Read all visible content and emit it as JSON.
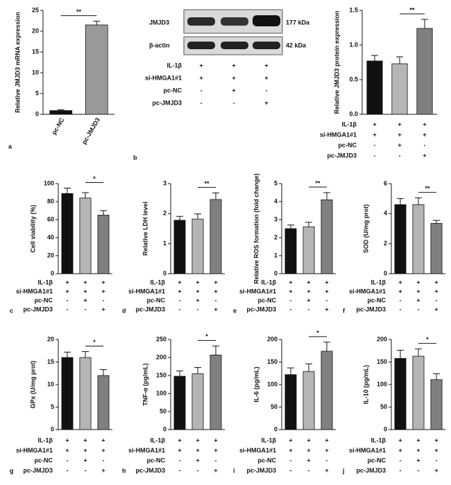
{
  "chart_data": [
    {
      "type": "bar",
      "panel": "a",
      "ylabel": "Relative JMJD3 mRNA expression",
      "categories": [
        "pc-NC",
        "pc-JMJD3"
      ],
      "values": [
        0.9,
        21.5
      ],
      "errors": [
        0.2,
        0.9
      ],
      "colors": [
        "#111111",
        "#9a9a9a"
      ],
      "ylim": [
        0,
        25
      ],
      "yticks": [
        0,
        5,
        10,
        15,
        20,
        25
      ],
      "significance": "**"
    },
    {
      "type": "bar",
      "panel": "b",
      "ylabel": "Relative JMJD3 protein expression",
      "values": [
        0.77,
        0.73,
        1.24
      ],
      "errors": [
        0.08,
        0.1,
        0.13
      ],
      "colors": [
        "#111111",
        "#b5b5b5",
        "#808080"
      ],
      "ylim": [
        0,
        1.5
      ],
      "yticks": [
        {
          "value": 0,
          "label": "0.0"
        },
        0.5,
        {
          "value": 1,
          "label": "1.0"
        },
        1.5
      ],
      "significance": "**",
      "conditions": [
        {
          "label": "IL-1β",
          "signs": [
            "+",
            "+",
            "+"
          ]
        },
        {
          "label": "si-HMGA1#1",
          "signs": [
            "+",
            "+",
            "+"
          ]
        },
        {
          "label": "pc-NC",
          "signs": [
            "-",
            "+",
            "-"
          ]
        },
        {
          "label": "pc-JMJD3",
          "signs": [
            "-",
            "-",
            "+"
          ]
        }
      ]
    },
    {
      "type": "bar",
      "panel": "c",
      "ylabel": "Cell viability (%)",
      "values": [
        89,
        84,
        65
      ],
      "errors": [
        6,
        6,
        5
      ],
      "colors": [
        "#111111",
        "#b5b5b5",
        "#808080"
      ],
      "ylim": [
        0,
        100
      ],
      "yticks": [
        0,
        20,
        40,
        60,
        80,
        100
      ],
      "significance": "*",
      "conditions": [
        {
          "label": "IL-1β",
          "signs": [
            "+",
            "+",
            "+"
          ]
        },
        {
          "label": "si-HMGA1#1",
          "signs": [
            "+",
            "+",
            "+"
          ]
        },
        {
          "label": "pc-NC",
          "signs": [
            "-",
            "+",
            "-"
          ]
        },
        {
          "label": "pc-JMJD3",
          "signs": [
            "-",
            "-",
            "+"
          ]
        }
      ]
    },
    {
      "type": "bar",
      "panel": "d",
      "ylabel": "Relative LDH level",
      "values": [
        1.78,
        1.82,
        2.47
      ],
      "errors": [
        0.13,
        0.17,
        0.22
      ],
      "colors": [
        "#111111",
        "#b5b5b5",
        "#808080"
      ],
      "ylim": [
        0,
        3
      ],
      "yticks": [
        0,
        1,
        2,
        3
      ],
      "significance": "**",
      "conditions": [
        {
          "label": "IL-1β",
          "signs": [
            "+",
            "+",
            "+"
          ]
        },
        {
          "label": "si-HMGA1#1",
          "signs": [
            "+",
            "+",
            "+"
          ]
        },
        {
          "label": "pc-NC",
          "signs": [
            "-",
            "+",
            "-"
          ]
        },
        {
          "label": "pc-JMJD3",
          "signs": [
            "-",
            "-",
            "+"
          ]
        }
      ]
    },
    {
      "type": "bar",
      "panel": "e",
      "ylabel": "Relative ROS formation (fold change)",
      "values": [
        2.5,
        2.6,
        4.1
      ],
      "errors": [
        0.2,
        0.25,
        0.4
      ],
      "colors": [
        "#111111",
        "#b5b5b5",
        "#808080"
      ],
      "ylim": [
        0,
        5
      ],
      "yticks": [
        0,
        1,
        2,
        3,
        4,
        5
      ],
      "significance": "**",
      "conditions": [
        {
          "label": "IL-1β",
          "signs": [
            "+",
            "+",
            "+"
          ]
        },
        {
          "label": "si-HMGA1#1",
          "signs": [
            "+",
            "+",
            "+"
          ]
        },
        {
          "label": "pc-NC",
          "signs": [
            "-",
            "+",
            "-"
          ]
        },
        {
          "label": "pc-JMJD3",
          "signs": [
            "-",
            "-",
            "+"
          ]
        }
      ]
    },
    {
      "type": "bar",
      "panel": "f",
      "ylabel": "SOD (U/mg prot)",
      "values": [
        4.6,
        4.6,
        3.35
      ],
      "errors": [
        0.4,
        0.45,
        0.2
      ],
      "colors": [
        "#111111",
        "#b5b5b5",
        "#808080"
      ],
      "ylim": [
        0,
        6
      ],
      "yticks": [
        0,
        2,
        4,
        6
      ],
      "significance": "**",
      "conditions": [
        {
          "label": "IL-1β",
          "signs": [
            "+",
            "+",
            "+"
          ]
        },
        {
          "label": "si-HMGA1#1",
          "signs": [
            "+",
            "+",
            "+"
          ]
        },
        {
          "label": "pc-NC",
          "signs": [
            "-",
            "+",
            "-"
          ]
        },
        {
          "label": "pc-JMJD3",
          "signs": [
            "-",
            "-",
            "+"
          ]
        }
      ]
    },
    {
      "type": "bar",
      "panel": "g",
      "ylabel": "GPx (U/mg prot)",
      "values": [
        16,
        16,
        12
      ],
      "errors": [
        1.2,
        1.3,
        1.3
      ],
      "colors": [
        "#111111",
        "#b5b5b5",
        "#808080"
      ],
      "ylim": [
        0,
        20
      ],
      "yticks": [
        0,
        5,
        10,
        15,
        20
      ],
      "significance": "*",
      "conditions": [
        {
          "label": "IL-1β",
          "signs": [
            "+",
            "+",
            "+"
          ]
        },
        {
          "label": "si-HMGA1#1",
          "signs": [
            "+",
            "+",
            "+"
          ]
        },
        {
          "label": "pc-NC",
          "signs": [
            "-",
            "+",
            "-"
          ]
        },
        {
          "label": "pc-JMJD3",
          "signs": [
            "-",
            "-",
            "+"
          ]
        }
      ]
    },
    {
      "type": "bar",
      "panel": "h",
      "ylabel": "TNF-α (pg/mL)",
      "values": [
        148,
        155,
        207
      ],
      "errors": [
        15,
        17,
        25
      ],
      "colors": [
        "#111111",
        "#b5b5b5",
        "#808080"
      ],
      "ylim": [
        0,
        250
      ],
      "yticks": [
        0,
        50,
        100,
        150,
        200,
        250
      ],
      "significance": "*",
      "conditions": [
        {
          "label": "IL-1β",
          "signs": [
            "+",
            "+",
            "+"
          ]
        },
        {
          "label": "si-HMGA1#1",
          "signs": [
            "+",
            "+",
            "+"
          ]
        },
        {
          "label": "pc-NC",
          "signs": [
            "-",
            "+",
            "-"
          ]
        },
        {
          "label": "pc-JMJD3",
          "signs": [
            "-",
            "-",
            "+"
          ]
        }
      ]
    },
    {
      "type": "bar",
      "panel": "i",
      "ylabel": "IL-6 (pg/mL)",
      "values": [
        122,
        129,
        174
      ],
      "errors": [
        15,
        17,
        20
      ],
      "colors": [
        "#111111",
        "#b5b5b5",
        "#808080"
      ],
      "ylim": [
        0,
        200
      ],
      "yticks": [
        0,
        50,
        100,
        150,
        200
      ],
      "significance": "*",
      "conditions": [
        {
          "label": "IL-1β",
          "signs": [
            "+",
            "+",
            "+"
          ]
        },
        {
          "label": "si-HMGA1#1",
          "signs": [
            "+",
            "+",
            "+"
          ]
        },
        {
          "label": "pc-NC",
          "signs": [
            "-",
            "+",
            "-"
          ]
        },
        {
          "label": "pc-JMJD3",
          "signs": [
            "-",
            "-",
            "+"
          ]
        }
      ]
    },
    {
      "type": "bar",
      "panel": "j",
      "ylabel": "IL-10 (pg/mL)",
      "values": [
        158,
        163,
        111
      ],
      "errors": [
        18,
        16,
        13
      ],
      "colors": [
        "#111111",
        "#b5b5b5",
        "#808080"
      ],
      "ylim": [
        0,
        200
      ],
      "yticks": [
        0,
        50,
        100,
        150,
        200
      ],
      "significance": "*",
      "conditions": [
        {
          "label": "IL-1β",
          "signs": [
            "+",
            "+",
            "+"
          ]
        },
        {
          "label": "si-HMGA1#1",
          "signs": [
            "+",
            "+",
            "+"
          ]
        },
        {
          "label": "pc-NC",
          "signs": [
            "-",
            "+",
            "-"
          ]
        },
        {
          "label": "pc-JMJD3",
          "signs": [
            "-",
            "-",
            "+"
          ]
        }
      ]
    }
  ],
  "blot": {
    "bands": [
      {
        "label": "JMJD3",
        "size": "177 kDa"
      },
      {
        "label": "β-actin",
        "size": "42 kDa"
      }
    ],
    "conditions": [
      {
        "label": "IL-1β",
        "signs": [
          "+",
          "+",
          "+"
        ]
      },
      {
        "label": "si-HMGA1#1",
        "signs": [
          "+",
          "+",
          "+"
        ]
      },
      {
        "label": "pc-NC",
        "signs": [
          "-",
          "+",
          "-"
        ]
      },
      {
        "label": "pc-JMJD3",
        "signs": [
          "-",
          "-",
          "+"
        ]
      }
    ]
  }
}
